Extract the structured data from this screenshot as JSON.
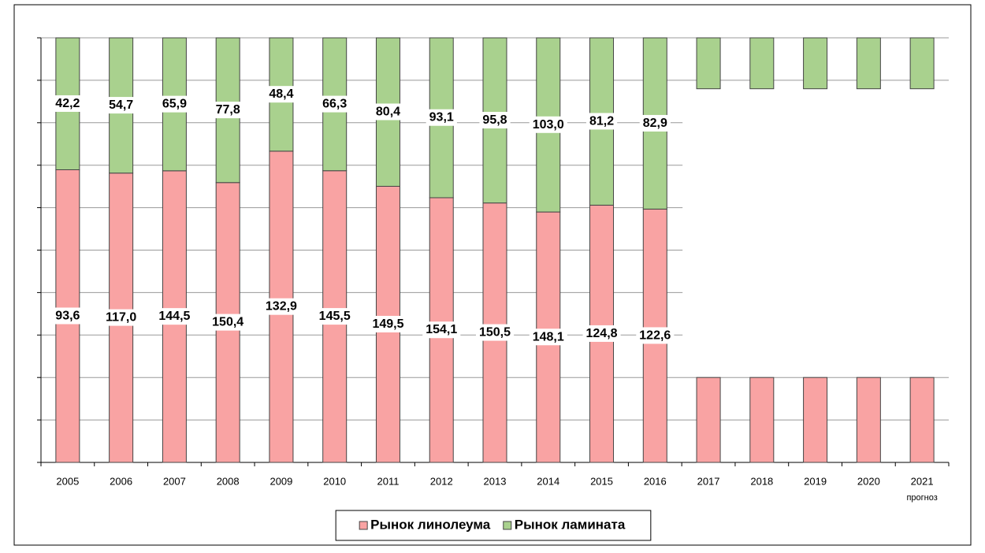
{
  "chart_data": {
    "type": "bar",
    "stacking": "percent",
    "categories": [
      "2005",
      "2006",
      "2007",
      "2008",
      "2009",
      "2010",
      "2011",
      "2012",
      "2013",
      "2014",
      "2015",
      "2016",
      "2017",
      "2018",
      "2019",
      "2020",
      "2021"
    ],
    "forecast_note": "прогноз",
    "series": [
      {
        "name": "Рынок линолеума",
        "color": "#f9a3a3",
        "values": [
          93.6,
          117.0,
          144.5,
          150.4,
          132.9,
          145.5,
          149.5,
          154.1,
          150.5,
          148.1,
          124.8,
          122.6,
          null,
          null,
          null,
          null,
          null
        ],
        "value_labels": [
          "93,6",
          "117,0",
          "144,5",
          "150,4",
          "132,9",
          "145,5",
          "149,5",
          "154,1",
          "150,5",
          "148,1",
          "124,8",
          "122,6",
          null,
          null,
          null,
          null,
          null
        ]
      },
      {
        "name": "Рынок ламината",
        "color": "#a9d18e",
        "values": [
          42.2,
          54.7,
          65.9,
          77.8,
          48.4,
          66.3,
          80.4,
          93.1,
          95.8,
          103.0,
          81.2,
          82.9,
          null,
          null,
          null,
          null,
          null
        ],
        "value_labels": [
          "42,2",
          "54,7",
          "65,9",
          "77,8",
          "48,4",
          "66,3",
          "80,4",
          "93,1",
          "95,8",
          "103,0",
          "81,2",
          "82,9",
          null,
          null,
          null,
          null,
          null
        ]
      }
    ],
    "ylim": [
      0,
      100
    ],
    "yticks": [
      0,
      10,
      20,
      30,
      40,
      50,
      60,
      70,
      80,
      90,
      100
    ],
    "grid": true
  }
}
